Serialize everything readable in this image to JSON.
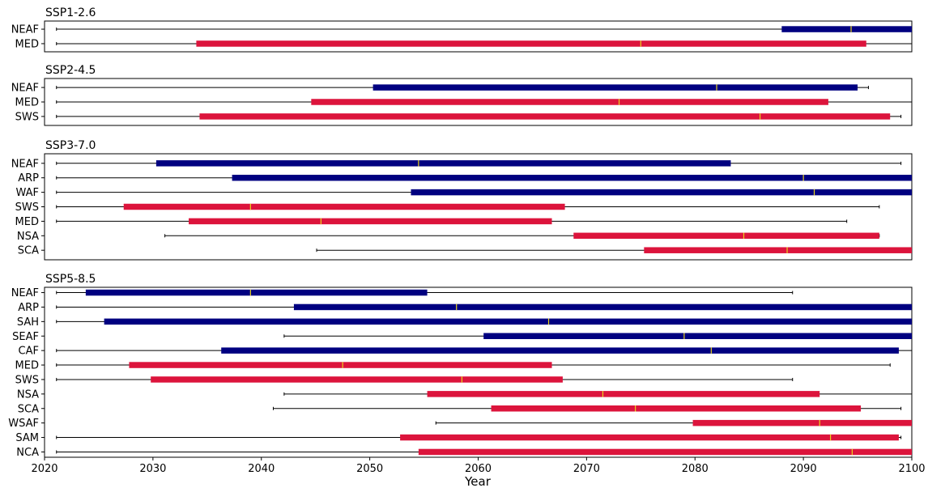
{
  "chart_data": {
    "type": "bar",
    "xlabel": "Year",
    "xlim": [
      2020,
      2100
    ],
    "xticks": [
      2020,
      2030,
      2040,
      2050,
      2060,
      2070,
      2080,
      2090,
      2100
    ],
    "colors": {
      "blue": "#000080",
      "red": "#dc143c",
      "median": "#e8d21d",
      "whisker": "#000000"
    },
    "panels": [
      {
        "title": "SSP1-2.6",
        "rows": [
          {
            "label": "NEAF",
            "color": "blue",
            "whisker_low": 2021.1,
            "q1": 2088.0,
            "median": 2094.4,
            "q3": 2100.0,
            "whisker_high": 2100.0
          },
          {
            "label": "MED",
            "color": "red",
            "whisker_low": 2021.1,
            "q1": 2034.0,
            "median": 2075.0,
            "q3": 2095.8,
            "whisker_high": 2100.0
          }
        ]
      },
      {
        "title": "SSP2-4.5",
        "rows": [
          {
            "label": "NEAF",
            "color": "blue",
            "whisker_low": 2021.1,
            "q1": 2050.3,
            "median": 2082.0,
            "q3": 2095.0,
            "whisker_high": 2096.0
          },
          {
            "label": "MED",
            "color": "red",
            "whisker_low": 2021.1,
            "q1": 2044.6,
            "median": 2073.0,
            "q3": 2092.3,
            "whisker_high": 2100.0
          },
          {
            "label": "SWS",
            "color": "red",
            "whisker_low": 2021.1,
            "q1": 2034.3,
            "median": 2086.0,
            "q3": 2098.0,
            "whisker_high": 2099.0
          }
        ]
      },
      {
        "title": "SSP3-7.0",
        "rows": [
          {
            "label": "NEAF",
            "color": "blue",
            "whisker_low": 2021.1,
            "q1": 2030.3,
            "median": 2054.5,
            "q3": 2083.3,
            "whisker_high": 2099.0
          },
          {
            "label": "ARP",
            "color": "blue",
            "whisker_low": 2021.1,
            "q1": 2037.3,
            "median": 2090.0,
            "q3": 2100.0,
            "whisker_high": 2100.0
          },
          {
            "label": "WAF",
            "color": "blue",
            "whisker_low": 2021.1,
            "q1": 2053.8,
            "median": 2091.0,
            "q3": 2100.0,
            "whisker_high": 2100.0
          },
          {
            "label": "SWS",
            "color": "red",
            "whisker_low": 2021.1,
            "q1": 2027.3,
            "median": 2039.0,
            "q3": 2068.0,
            "whisker_high": 2097.0
          },
          {
            "label": "MED",
            "color": "red",
            "whisker_low": 2021.1,
            "q1": 2033.3,
            "median": 2045.5,
            "q3": 2066.8,
            "whisker_high": 2094.0
          },
          {
            "label": "NSA",
            "color": "red",
            "whisker_low": 2031.1,
            "q1": 2068.8,
            "median": 2084.5,
            "q3": 2097.0,
            "whisker_high": 2097.0
          },
          {
            "label": "SCA",
            "color": "red",
            "whisker_low": 2045.1,
            "q1": 2075.3,
            "median": 2088.5,
            "q3": 2100.0,
            "whisker_high": 2100.0
          }
        ]
      },
      {
        "title": "SSP5-8.5",
        "rows": [
          {
            "label": "NEAF",
            "color": "blue",
            "whisker_low": 2021.1,
            "q1": 2023.8,
            "median": 2039.0,
            "q3": 2055.3,
            "whisker_high": 2089.0
          },
          {
            "label": "ARP",
            "color": "blue",
            "whisker_low": 2021.1,
            "q1": 2043.0,
            "median": 2058.0,
            "q3": 2100.0,
            "whisker_high": 2100.0
          },
          {
            "label": "SAH",
            "color": "blue",
            "whisker_low": 2021.1,
            "q1": 2025.5,
            "median": 2066.5,
            "q3": 2100.0,
            "whisker_high": 2100.0
          },
          {
            "label": "SEAF",
            "color": "blue",
            "whisker_low": 2042.1,
            "q1": 2060.5,
            "median": 2079.0,
            "q3": 2100.0,
            "whisker_high": 2100.0
          },
          {
            "label": "CAF",
            "color": "blue",
            "whisker_low": 2021.1,
            "q1": 2036.3,
            "median": 2081.5,
            "q3": 2098.8,
            "whisker_high": 2100.0
          },
          {
            "label": "MED",
            "color": "red",
            "whisker_low": 2021.1,
            "q1": 2027.8,
            "median": 2047.5,
            "q3": 2066.8,
            "whisker_high": 2098.0
          },
          {
            "label": "SWS",
            "color": "red",
            "whisker_low": 2021.1,
            "q1": 2029.8,
            "median": 2058.5,
            "q3": 2067.8,
            "whisker_high": 2089.0
          },
          {
            "label": "NSA",
            "color": "red",
            "whisker_low": 2042.1,
            "q1": 2055.3,
            "median": 2071.5,
            "q3": 2091.5,
            "whisker_high": 2100.0
          },
          {
            "label": "SCA",
            "color": "red",
            "whisker_low": 2041.1,
            "q1": 2061.2,
            "median": 2074.5,
            "q3": 2095.3,
            "whisker_high": 2099.0
          },
          {
            "label": "WSAF",
            "color": "red",
            "whisker_low": 2056.1,
            "q1": 2079.8,
            "median": 2091.5,
            "q3": 2100.0,
            "whisker_high": 2100.0
          },
          {
            "label": "SAM",
            "color": "red",
            "whisker_low": 2021.1,
            "q1": 2052.8,
            "median": 2092.5,
            "q3": 2098.8,
            "whisker_high": 2099.0
          },
          {
            "label": "NCA",
            "color": "red",
            "whisker_low": 2021.1,
            "q1": 2054.5,
            "median": 2094.5,
            "q3": 2100.0,
            "whisker_high": 2100.0
          }
        ]
      }
    ]
  }
}
